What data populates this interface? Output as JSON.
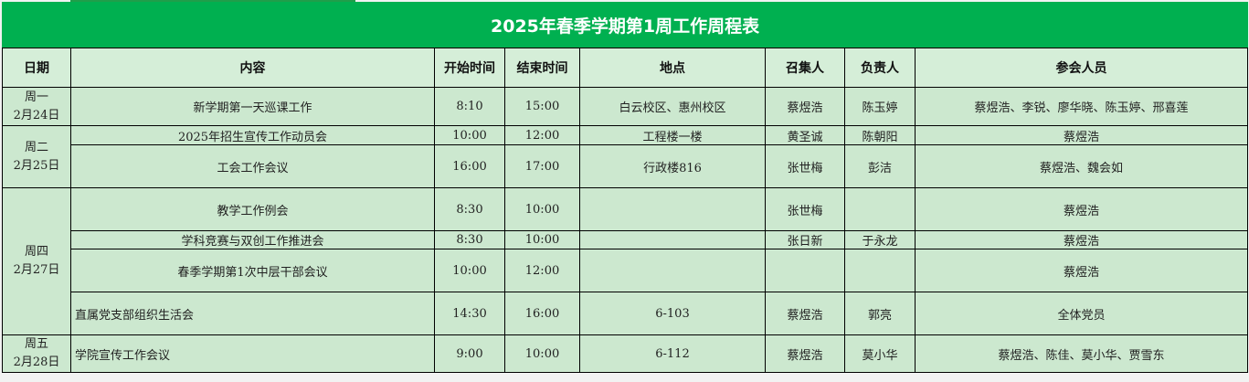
{
  "title": "2025年春季学期第1周工作周程表",
  "columns": [
    "日期",
    "内容",
    "开始时间",
    "结束时间",
    "地点",
    "召集人",
    "负责人",
    "参会人员"
  ],
  "days": [
    {
      "weekday": "周一",
      "date": "2月24日",
      "rows": [
        {
          "content": "新学期第一天巡课工作",
          "start": "8:10",
          "end": "15:00",
          "location": "白云校区、惠州校区",
          "convener": "蔡煜浩",
          "owner": "陈玉婷",
          "attendees": "蔡煜浩、李锐、廖华晓、陈玉婷、邢喜莲"
        }
      ]
    },
    {
      "weekday": "周二",
      "date": "2月25日",
      "rows": [
        {
          "content": "2025年招生宣传工作动员会",
          "start": "10:00",
          "end": "12:00",
          "location": "工程楼一楼",
          "convener": "黄圣诚",
          "owner": "陈朝阳",
          "attendees": "蔡煜浩"
        },
        {
          "content": "工会工作会议",
          "start": "16:00",
          "end": "17:00",
          "location": "行政楼816",
          "convener": "张世梅",
          "owner": "彭洁",
          "attendees": "蔡煜浩、魏会如"
        }
      ]
    },
    {
      "weekday": "周四",
      "date": "2月27日",
      "rows": [
        {
          "content": "教学工作例会",
          "start": "8:30",
          "end": "10:00",
          "location": "",
          "convener": "张世梅",
          "owner": "",
          "attendees": "蔡煜浩"
        },
        {
          "content": "学科竞赛与双创工作推进会",
          "start": "8:30",
          "end": "10:00",
          "location": "",
          "convener": "张日新",
          "owner": "于永龙",
          "attendees": "蔡煜浩"
        },
        {
          "content": "春季学期第1次中层干部会议",
          "start": "10:00",
          "end": "12:00",
          "location": "",
          "convener": "",
          "owner": "",
          "attendees": "蔡煜浩"
        },
        {
          "content": "直属党支部组织生活会",
          "start": "14:30",
          "end": "16:00",
          "location": "6-103",
          "convener": "蔡煜浩",
          "owner": "郭亮",
          "attendees": "全体党员"
        }
      ]
    },
    {
      "weekday": "周五",
      "date": "2月28日",
      "rows": [
        {
          "content": "学院宣传工作会议",
          "start": "9:00",
          "end": "10:00",
          "location": "6-112",
          "convener": "蔡煜浩",
          "owner": "莫小华",
          "attendees": "蔡煜浩、陈佳、莫小华、贾雪东"
        }
      ]
    }
  ],
  "colors": {
    "title_bg": "#00b050",
    "header_bg": "#d5eed8",
    "body_bg": "#cce8cf"
  }
}
